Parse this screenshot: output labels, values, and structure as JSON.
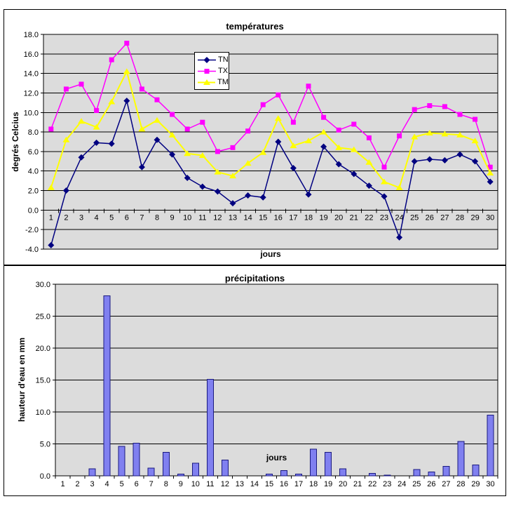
{
  "page_background": "#ffffff",
  "chart_data": [
    {
      "id": "temperatures",
      "type": "line",
      "title": "températures",
      "xlabel": "jours",
      "ylabel": "degrés Celcius",
      "ylim": [
        -4.0,
        18.0
      ],
      "ytick_step": 2.0,
      "grid": true,
      "plot_bg": "#DCDCDC",
      "grid_color": "#000000",
      "legend_position": "inside-top-center",
      "categories": [
        1,
        2,
        3,
        4,
        5,
        6,
        7,
        8,
        9,
        10,
        11,
        12,
        13,
        14,
        15,
        16,
        17,
        18,
        19,
        20,
        21,
        22,
        23,
        24,
        25,
        26,
        27,
        28,
        29,
        30
      ],
      "series": [
        {
          "name": "TN",
          "color": "#000080",
          "marker": "diamond",
          "values": [
            -3.6,
            2.0,
            5.4,
            6.9,
            6.8,
            11.2,
            4.4,
            7.2,
            5.7,
            3.3,
            2.4,
            1.9,
            0.7,
            1.5,
            1.3,
            7.0,
            4.3,
            1.6,
            6.5,
            4.7,
            3.7,
            2.5,
            1.4,
            -2.8,
            5.0,
            5.2,
            5.1,
            5.7,
            5.0,
            2.9
          ]
        },
        {
          "name": "TX",
          "color": "#FF00FF",
          "marker": "square",
          "values": [
            8.3,
            12.4,
            12.9,
            10.2,
            15.4,
            17.1,
            12.4,
            11.3,
            9.8,
            8.3,
            9.0,
            6.0,
            6.4,
            8.1,
            10.8,
            11.8,
            9.0,
            12.7,
            9.5,
            8.2,
            8.8,
            7.4,
            4.4,
            7.6,
            10.3,
            10.7,
            10.6,
            9.8,
            9.3,
            4.4
          ]
        },
        {
          "name": "TM",
          "color": "#FFFF00",
          "marker": "triangle",
          "values": [
            2.3,
            7.2,
            9.1,
            8.5,
            11.1,
            14.2,
            8.3,
            9.2,
            7.7,
            5.8,
            5.6,
            3.9,
            3.5,
            4.8,
            5.9,
            9.4,
            6.6,
            7.1,
            8.0,
            6.4,
            6.2,
            4.9,
            2.9,
            2.3,
            7.5,
            7.9,
            7.8,
            7.7,
            7.1,
            3.8
          ]
        }
      ]
    },
    {
      "id": "precipitations",
      "type": "bar",
      "title": "précipitations",
      "xlabel": "jours",
      "ylabel": "hauteur d'eau en mm",
      "ylim": [
        0.0,
        30.0
      ],
      "ytick_step": 5.0,
      "grid": true,
      "plot_bg": "#DCDCDC",
      "grid_color": "#000000",
      "bar_color": "#8080F0",
      "bar_border": "#1a1a80",
      "categories": [
        1,
        2,
        3,
        4,
        5,
        6,
        7,
        8,
        9,
        10,
        11,
        12,
        13,
        14,
        15,
        16,
        17,
        18,
        19,
        20,
        21,
        22,
        23,
        24,
        25,
        26,
        27,
        28,
        29,
        30
      ],
      "values": [
        0,
        0,
        1.1,
        28.2,
        4.6,
        5.1,
        1.2,
        3.7,
        0.3,
        2.0,
        15.1,
        2.5,
        0,
        0,
        0.3,
        0.8,
        0.3,
        4.2,
        3.7,
        1.1,
        0,
        0.4,
        0.1,
        0,
        1.0,
        0.6,
        1.5,
        5.4,
        1.7,
        9.5
      ]
    }
  ]
}
